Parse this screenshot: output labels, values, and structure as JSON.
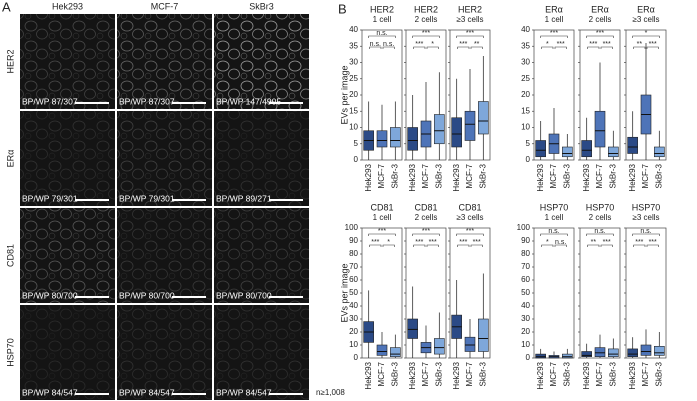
{
  "panel_a": {
    "label": "A",
    "columns": [
      "Hek293",
      "MCF-7",
      "SkBr3"
    ],
    "rows": [
      {
        "marker": "HER2",
        "labels": [
          "BP/WP 87/307",
          "BP/WP 87/307",
          "BP/WP 147/4905"
        ]
      },
      {
        "marker": "ERα",
        "labels": [
          "BP/WP 79/301",
          "BP/WP 79/301",
          "BP/WP 89/271"
        ]
      },
      {
        "marker": "CD81",
        "labels": [
          "BP/WP 80/700",
          "BP/WP 80/700",
          "BP/WP 80/700"
        ]
      },
      {
        "marker": "HSP70",
        "labels": [
          "BP/WP 84/547",
          "BP/WP 84/547",
          "BP/WP 84/547"
        ]
      }
    ]
  },
  "panel_b_label": "B",
  "n_label": "n≥1,008",
  "chart_data": [
    {
      "type": "box",
      "title": "HER2",
      "subtitle": "1 cell",
      "ylabel": "EVs per image",
      "categories": [
        "Hek293",
        "MCF-7",
        "SkBr-3"
      ],
      "ylim": [
        0,
        40
      ],
      "yticks": [
        0,
        5,
        10,
        15,
        20,
        25,
        30,
        35,
        40
      ],
      "annotations": [
        "n.s.",
        "n.s.",
        "n.s."
      ],
      "boxes": [
        {
          "color": "#2b4a86",
          "whislo": 0,
          "q1": 3,
          "median": 6,
          "q3": 9,
          "whishi": 18
        },
        {
          "color": "#4e74b8",
          "whislo": 0,
          "q1": 4,
          "median": 6,
          "q3": 9,
          "whishi": 17
        },
        {
          "color": "#7ea7da",
          "whislo": 0,
          "q1": 4,
          "median": 6,
          "q3": 10,
          "whishi": 18
        }
      ]
    },
    {
      "type": "box",
      "title": "HER2",
      "subtitle": "2 cells",
      "categories": [
        "Hek293",
        "MCF-7",
        "SkBr-3"
      ],
      "ylim": [
        0,
        40
      ],
      "yticks": [
        0,
        5,
        10,
        15,
        20,
        25,
        30,
        35,
        40
      ],
      "annotations": [
        "***",
        "***",
        "*"
      ],
      "boxes": [
        {
          "color": "#2b4a86",
          "whislo": 0,
          "q1": 3,
          "median": 6,
          "q3": 10,
          "whishi": 20
        },
        {
          "color": "#4e74b8",
          "whislo": 0,
          "q1": 4,
          "median": 8,
          "q3": 12,
          "whishi": 24
        },
        {
          "color": "#7ea7da",
          "whislo": 0,
          "q1": 5,
          "median": 9,
          "q3": 14,
          "whishi": 27
        }
      ]
    },
    {
      "type": "box",
      "title": "HER2",
      "subtitle": "≥3 cells",
      "categories": [
        "Hek293",
        "MCF-7",
        "SkBr-3"
      ],
      "ylim": [
        0,
        40
      ],
      "yticks": [
        0,
        5,
        10,
        15,
        20,
        25,
        30,
        35,
        40
      ],
      "annotations": [
        "***",
        "***",
        "**"
      ],
      "boxes": [
        {
          "color": "#2b4a86",
          "whislo": 0,
          "q1": 4,
          "median": 8,
          "q3": 13,
          "whishi": 25
        },
        {
          "color": "#4e74b8",
          "whislo": 0,
          "q1": 6,
          "median": 11,
          "q3": 15,
          "whishi": 28
        },
        {
          "color": "#7ea7da",
          "whislo": 0,
          "q1": 8,
          "median": 12,
          "q3": 18,
          "whishi": 32
        }
      ]
    },
    {
      "type": "box",
      "title": "ERα",
      "subtitle": "1 cell",
      "categories": [
        "Hek293",
        "MCF-7",
        "SkBr-3"
      ],
      "ylim": [
        0,
        40
      ],
      "yticks": [
        0,
        5,
        10,
        15,
        20,
        25,
        30,
        35,
        40
      ],
      "annotations": [
        "***",
        "*",
        "***"
      ],
      "boxes": [
        {
          "color": "#2b4a86",
          "whislo": 0,
          "q1": 1,
          "median": 3,
          "q3": 6,
          "whishi": 12
        },
        {
          "color": "#4e74b8",
          "whislo": 0,
          "q1": 2,
          "median": 5,
          "q3": 8,
          "whishi": 16
        },
        {
          "color": "#7ea7da",
          "whislo": 0,
          "q1": 1,
          "median": 2,
          "q3": 4,
          "whishi": 8
        }
      ]
    },
    {
      "type": "box",
      "title": "ERα",
      "subtitle": "2 cells",
      "categories": [
        "Hek293",
        "MCF-7",
        "SkBr-3"
      ],
      "ylim": [
        0,
        40
      ],
      "yticks": [
        0,
        5,
        10,
        15,
        20,
        25,
        30,
        35,
        40
      ],
      "annotations": [
        "***",
        "***",
        "***"
      ],
      "boxes": [
        {
          "color": "#2b4a86",
          "whislo": 0,
          "q1": 1,
          "median": 3,
          "q3": 6,
          "whishi": 13
        },
        {
          "color": "#4e74b8",
          "whislo": 0,
          "q1": 4,
          "median": 9,
          "q3": 15,
          "whishi": 30
        },
        {
          "color": "#7ea7da",
          "whislo": 0,
          "q1": 1,
          "median": 2,
          "q3": 4,
          "whishi": 9
        }
      ]
    },
    {
      "type": "box",
      "title": "ERα",
      "subtitle": "≥3 cells",
      "categories": [
        "Hek293",
        "MCF-7",
        "SkBr-3"
      ],
      "ylim": [
        0,
        40
      ],
      "yticks": [
        0,
        5,
        10,
        15,
        20,
        25,
        30,
        35,
        40
      ],
      "annotations": [
        "*",
        "**",
        "***"
      ],
      "boxes": [
        {
          "color": "#2b4a86",
          "whislo": 0,
          "q1": 2,
          "median": 4,
          "q3": 7,
          "whishi": 15
        },
        {
          "color": "#4e74b8",
          "whislo": 0,
          "q1": 8,
          "median": 14,
          "q3": 20,
          "whishi": 36
        },
        {
          "color": "#7ea7da",
          "whislo": 0,
          "q1": 1,
          "median": 2,
          "q3": 4,
          "whishi": 9
        }
      ]
    },
    {
      "type": "box",
      "title": "CD81",
      "subtitle": "1 cell",
      "ylabel": "EVs per image",
      "categories": [
        "Hek293",
        "MCF-7",
        "SkBr-3"
      ],
      "ylim": [
        0,
        100
      ],
      "yticks": [
        0,
        10,
        20,
        30,
        40,
        50,
        60,
        70,
        80,
        90,
        100
      ],
      "annotations": [
        "***",
        "***",
        "*"
      ],
      "boxes": [
        {
          "color": "#2b4a86",
          "whislo": 0,
          "q1": 12,
          "median": 20,
          "q3": 28,
          "whishi": 52
        },
        {
          "color": "#4e74b8",
          "whislo": 0,
          "q1": 2,
          "median": 5,
          "q3": 10,
          "whishi": 20
        },
        {
          "color": "#7ea7da",
          "whislo": 0,
          "q1": 1,
          "median": 3,
          "q3": 8,
          "whishi": 18
        }
      ]
    },
    {
      "type": "box",
      "title": "CD81",
      "subtitle": "2 cells",
      "categories": [
        "Hek293",
        "MCF-7",
        "SkBr-3"
      ],
      "ylim": [
        0,
        100
      ],
      "yticks": [
        0,
        10,
        20,
        30,
        40,
        50,
        60,
        70,
        80,
        90,
        100
      ],
      "annotations": [
        "***",
        "***",
        "***"
      ],
      "boxes": [
        {
          "color": "#2b4a86",
          "whislo": 0,
          "q1": 15,
          "median": 22,
          "q3": 30,
          "whishi": 55
        },
        {
          "color": "#4e74b8",
          "whislo": 0,
          "q1": 4,
          "median": 8,
          "q3": 12,
          "whishi": 25
        },
        {
          "color": "#7ea7da",
          "whislo": 0,
          "q1": 3,
          "median": 8,
          "q3": 15,
          "whishi": 35
        }
      ]
    },
    {
      "type": "box",
      "title": "CD81",
      "subtitle": "≥3 cells",
      "categories": [
        "Hek293",
        "MCF-7",
        "SkBr-3"
      ],
      "ylim": [
        0,
        100
      ],
      "yticks": [
        0,
        10,
        20,
        30,
        40,
        50,
        60,
        70,
        80,
        90,
        100
      ],
      "annotations": [
        "***",
        "***",
        "***"
      ],
      "boxes": [
        {
          "color": "#2b4a86",
          "whislo": 0,
          "q1": 15,
          "median": 24,
          "q3": 33,
          "whishi": 60
        },
        {
          "color": "#4e74b8",
          "whislo": 0,
          "q1": 5,
          "median": 10,
          "q3": 16,
          "whishi": 30
        },
        {
          "color": "#7ea7da",
          "whislo": 0,
          "q1": 5,
          "median": 15,
          "q3": 30,
          "whishi": 65
        }
      ]
    },
    {
      "type": "box",
      "title": "HSP70",
      "subtitle": "1 cell",
      "categories": [
        "Hek293",
        "MCF-7",
        "SkBr-3"
      ],
      "ylim": [
        0,
        100
      ],
      "yticks": [
        0,
        10,
        20,
        30,
        40,
        50,
        60,
        70,
        80,
        90,
        100
      ],
      "annotations": [
        "n.s.",
        "*",
        "n.s."
      ],
      "boxes": [
        {
          "color": "#2b4a86",
          "whislo": 0,
          "q1": 0,
          "median": 1,
          "q3": 3,
          "whishi": 7
        },
        {
          "color": "#4e74b8",
          "whislo": 0,
          "q1": 0,
          "median": 1,
          "q3": 2,
          "whishi": 5
        },
        {
          "color": "#7ea7da",
          "whislo": 0,
          "q1": 0,
          "median": 1,
          "q3": 3,
          "whishi": 7
        }
      ]
    },
    {
      "type": "box",
      "title": "HSP70",
      "subtitle": "2 cells",
      "categories": [
        "Hek293",
        "MCF-7",
        "SkBr-3"
      ],
      "ylim": [
        0,
        100
      ],
      "yticks": [
        0,
        10,
        20,
        30,
        40,
        50,
        60,
        70,
        80,
        90,
        100
      ],
      "annotations": [
        "n.s.",
        "**",
        "***"
      ],
      "boxes": [
        {
          "color": "#2b4a86",
          "whislo": 0,
          "q1": 1,
          "median": 2,
          "q3": 5,
          "whishi": 11
        },
        {
          "color": "#4e74b8",
          "whislo": 0,
          "q1": 1,
          "median": 4,
          "q3": 8,
          "whishi": 18
        },
        {
          "color": "#7ea7da",
          "whislo": 0,
          "q1": 1,
          "median": 3,
          "q3": 7,
          "whishi": 15
        }
      ]
    },
    {
      "type": "box",
      "title": "HSP70",
      "subtitle": "≥3 cells",
      "categories": [
        "Hek293",
        "MCF-7",
        "SkBr-3"
      ],
      "ylim": [
        0,
        100
      ],
      "yticks": [
        0,
        10,
        20,
        30,
        40,
        50,
        60,
        70,
        80,
        90,
        100
      ],
      "annotations": [
        "n.s.",
        "***",
        "***"
      ],
      "boxes": [
        {
          "color": "#2b4a86",
          "whislo": 0,
          "q1": 1,
          "median": 3,
          "q3": 7,
          "whishi": 16
        },
        {
          "color": "#4e74b8",
          "whislo": 0,
          "q1": 2,
          "median": 5,
          "q3": 10,
          "whishi": 22
        },
        {
          "color": "#7ea7da",
          "whislo": 0,
          "q1": 2,
          "median": 4,
          "q3": 9,
          "whishi": 20
        }
      ]
    }
  ]
}
